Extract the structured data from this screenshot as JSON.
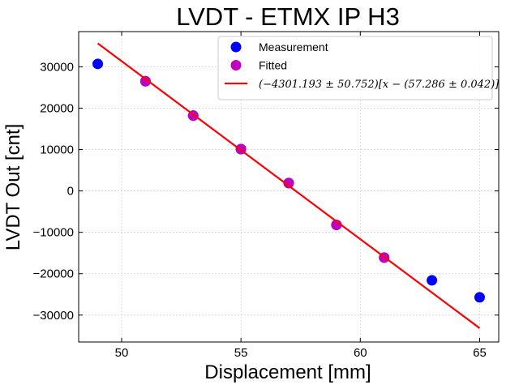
{
  "chart_data": {
    "type": "scatter",
    "title": "LVDT - ETMX IP H3",
    "xlabel": "Displacement [mm]",
    "ylabel": "LVDT Out [cnt]",
    "xlim": [
      48.2,
      65.8
    ],
    "ylim": [
      -36500,
      38500
    ],
    "xticks": [
      50,
      55,
      60,
      65
    ],
    "xtick_labels": [
      "50",
      "55",
      "60",
      "65"
    ],
    "yticks": [
      30000,
      20000,
      10000,
      0,
      -10000,
      -20000,
      -30000
    ],
    "ytick_labels": [
      "30000",
      "20000",
      "10000",
      "0",
      "−10000",
      "−20000",
      "−30000"
    ],
    "grid": true,
    "legend_position": "top-right",
    "series": [
      {
        "name": "Measurement",
        "kind": "scatter",
        "color": "#0000ff",
        "x": [
          49,
          51,
          53,
          55,
          57,
          59,
          61,
          63,
          65
        ],
        "y": [
          30700,
          26500,
          18200,
          10100,
          1900,
          -8200,
          -16100,
          -21600,
          -25700
        ]
      },
      {
        "name": "Fitted",
        "kind": "scatter",
        "color": "#bf00bf",
        "x": [
          51,
          53,
          55,
          57,
          59,
          61
        ],
        "y": [
          26500,
          18200,
          10100,
          1900,
          -8200,
          -16100
        ]
      },
      {
        "name": "(−4301.193 ± 50.752)[x − (57.286 ± 0.042)]",
        "kind": "line",
        "color": "#ff0000",
        "x": [
          49,
          65
        ],
        "y": [
          35660,
          -33160
        ]
      }
    ]
  }
}
